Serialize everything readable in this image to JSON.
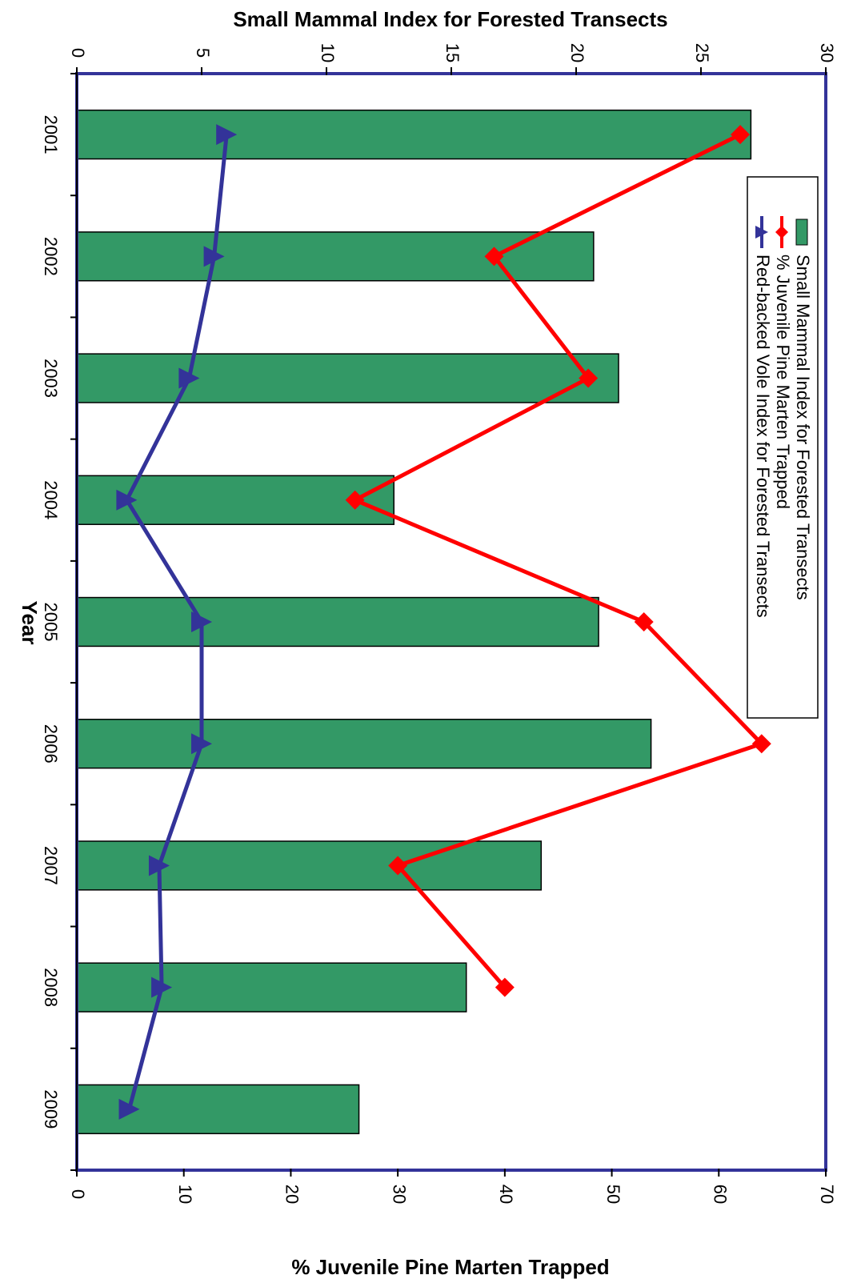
{
  "chart_data": {
    "type": "bar",
    "orientation": "rotated-90-clockwise",
    "categories": [
      "2001",
      "2002",
      "2003",
      "2004",
      "2005",
      "2006",
      "2007",
      "2008",
      "2009"
    ],
    "category_axis_label": "Year",
    "series": [
      {
        "name": "Small Mammal Index for Forested Transects",
        "type": "bar",
        "axis": "top",
        "color": "#339966",
        "values": [
          27.0,
          20.7,
          21.7,
          12.7,
          20.9,
          23.0,
          18.6,
          15.6,
          11.3
        ]
      },
      {
        "name": "% Juvenile Pine Marten Trapped",
        "type": "line",
        "marker": "diamond",
        "axis": "bottom",
        "color": "#ff0000",
        "values": [
          62.0,
          39.0,
          47.8,
          26.0,
          53.0,
          64.0,
          30.0,
          40.0,
          null
        ]
      },
      {
        "name": "Red-backed Vole Index for Forested Transects",
        "type": "line",
        "marker": "triangle",
        "axis": "top",
        "color": "#333399",
        "values": [
          6.0,
          5.5,
          4.5,
          2.0,
          5.0,
          5.0,
          3.3,
          3.4,
          2.1
        ]
      }
    ],
    "top_axis": {
      "title": "Small Mammal Index for Forested Transects",
      "range": [
        0,
        30
      ],
      "ticks": [
        "0",
        "5",
        "10",
        "15",
        "20",
        "25",
        "30"
      ]
    },
    "bottom_axis": {
      "title": "% Juvenile Pine Marten Trapped",
      "range": [
        0,
        70
      ],
      "ticks": [
        "0",
        "10",
        "20",
        "30",
        "40",
        "50",
        "60",
        "70"
      ]
    },
    "legend": {
      "entries": [
        "Small Mammal Index for Forested Transects",
        "% Juvenile Pine Marten Trapped",
        "Red-backed Vole Index for Forested Transects"
      ],
      "placement": "top-right"
    },
    "grid": false,
    "frame_color": "#333399"
  }
}
